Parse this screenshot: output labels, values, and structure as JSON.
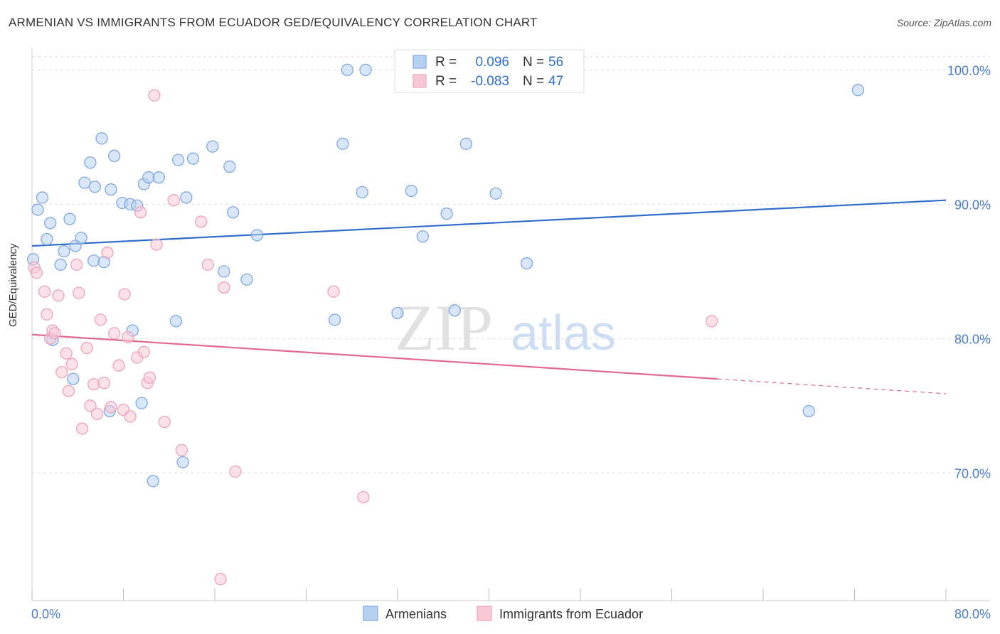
{
  "chart_data": {
    "type": "scatter",
    "title": "ARMENIAN VS IMMIGRANTS FROM ECUADOR GED/EQUIVALENCY CORRELATION CHART",
    "source": "Source: ZipAtlas.com",
    "xlabel": "",
    "ylabel": "GED/Equivalency",
    "xlim": [
      0,
      80
    ],
    "ylim": [
      60.5,
      101.5
    ],
    "x_tick_labels": [
      "0.0%",
      "80.0%"
    ],
    "y_tick_values": [
      70,
      80,
      90,
      100
    ],
    "y_tick_labels": [
      "70.0%",
      "80.0%",
      "90.0%",
      "100.0%"
    ],
    "grid": true,
    "legend_position": "bottom",
    "watermark": "ZIPatlas",
    "stats": [
      {
        "r_label": "R =",
        "r_value": "0.096",
        "n_label": "N =",
        "n_value": "56"
      },
      {
        "r_label": "R =",
        "r_value": "-0.083",
        "n_label": "N =",
        "n_value": "47"
      }
    ],
    "series": [
      {
        "name": "Armenians",
        "color": "#7fa8e0",
        "fill": "#b8d1f3",
        "trend_color": "#2f6fc9",
        "trend": {
          "x0": 0,
          "y0": 86.9,
          "x1": 80,
          "y1": 90.3
        },
        "points": [
          [
            0.1,
            85.9
          ],
          [
            0.5,
            89.6
          ],
          [
            0.9,
            90.5
          ],
          [
            1.3,
            87.4
          ],
          [
            1.6,
            88.6
          ],
          [
            2.5,
            85.5
          ],
          [
            2.8,
            86.5
          ],
          [
            3.3,
            88.9
          ],
          [
            3.8,
            86.9
          ],
          [
            4.3,
            87.5
          ],
          [
            4.6,
            91.6
          ],
          [
            5.1,
            93.1
          ],
          [
            5.4,
            85.8
          ],
          [
            5.5,
            91.3
          ],
          [
            6.1,
            94.9
          ],
          [
            6.3,
            85.7
          ],
          [
            6.9,
            91.1
          ],
          [
            7.2,
            93.6
          ],
          [
            7.9,
            90.1
          ],
          [
            8.6,
            90.0
          ],
          [
            9.2,
            89.9
          ],
          [
            9.8,
            91.5
          ],
          [
            10.2,
            92.0
          ],
          [
            11.1,
            92.0
          ],
          [
            12.8,
            93.3
          ],
          [
            13.5,
            90.5
          ],
          [
            14.1,
            93.4
          ],
          [
            15.8,
            94.3
          ],
          [
            16.8,
            85.0
          ],
          [
            17.3,
            92.8
          ],
          [
            17.6,
            89.4
          ],
          [
            18.8,
            84.4
          ],
          [
            19.7,
            87.7
          ],
          [
            27.2,
            94.5
          ],
          [
            27.6,
            100.0
          ],
          [
            29.2,
            100.0
          ],
          [
            28.9,
            90.9
          ],
          [
            33.2,
            91.0
          ],
          [
            34.2,
            87.6
          ],
          [
            36.3,
            89.3
          ],
          [
            38.0,
            94.5
          ],
          [
            40.6,
            90.8
          ],
          [
            43.3,
            85.6
          ],
          [
            1.8,
            79.9
          ],
          [
            3.6,
            77.0
          ],
          [
            6.8,
            74.6
          ],
          [
            8.8,
            80.6
          ],
          [
            9.6,
            75.2
          ],
          [
            10.6,
            69.4
          ],
          [
            12.6,
            81.3
          ],
          [
            13.2,
            70.8
          ],
          [
            26.5,
            81.4
          ],
          [
            32.0,
            81.9
          ],
          [
            37.0,
            82.1
          ],
          [
            68.0,
            74.6
          ],
          [
            72.3,
            98.5
          ]
        ]
      },
      {
        "name": "Immigrants from Ecuador",
        "color": "#eda3b9",
        "fill": "#f8c8d6",
        "trend_color": "#e0698f",
        "trend": {
          "x0": 0,
          "y0": 80.3,
          "x1": 60,
          "y1": 77.0
        },
        "trend_dashed": {
          "x0": 60,
          "y0": 77.0,
          "x1": 80,
          "y1": 75.9
        },
        "points": [
          [
            0.2,
            85.3
          ],
          [
            0.4,
            84.9
          ],
          [
            1.1,
            83.5
          ],
          [
            1.3,
            81.8
          ],
          [
            1.6,
            80.0
          ],
          [
            1.8,
            80.6
          ],
          [
            2.0,
            80.4
          ],
          [
            2.3,
            83.2
          ],
          [
            2.6,
            77.5
          ],
          [
            3.0,
            78.9
          ],
          [
            3.2,
            76.1
          ],
          [
            3.5,
            78.1
          ],
          [
            3.9,
            85.5
          ],
          [
            4.1,
            83.4
          ],
          [
            4.4,
            73.3
          ],
          [
            4.8,
            79.3
          ],
          [
            5.1,
            75.0
          ],
          [
            5.4,
            76.6
          ],
          [
            5.7,
            74.4
          ],
          [
            6.0,
            81.4
          ],
          [
            6.3,
            76.7
          ],
          [
            6.6,
            86.4
          ],
          [
            6.9,
            74.9
          ],
          [
            7.2,
            80.4
          ],
          [
            7.6,
            78.0
          ],
          [
            8.0,
            74.7
          ],
          [
            8.1,
            83.3
          ],
          [
            8.4,
            80.1
          ],
          [
            8.6,
            74.2
          ],
          [
            9.2,
            78.6
          ],
          [
            9.5,
            89.4
          ],
          [
            9.8,
            79.0
          ],
          [
            10.1,
            76.7
          ],
          [
            10.3,
            77.1
          ],
          [
            10.7,
            98.1
          ],
          [
            10.9,
            87.0
          ],
          [
            11.6,
            73.8
          ],
          [
            12.4,
            90.3
          ],
          [
            13.1,
            71.7
          ],
          [
            14.8,
            88.7
          ],
          [
            15.4,
            85.5
          ],
          [
            16.5,
            62.1
          ],
          [
            16.8,
            83.8
          ],
          [
            17.8,
            70.1
          ],
          [
            26.4,
            83.5
          ],
          [
            29.0,
            68.2
          ],
          [
            59.5,
            81.3
          ]
        ]
      }
    ]
  }
}
